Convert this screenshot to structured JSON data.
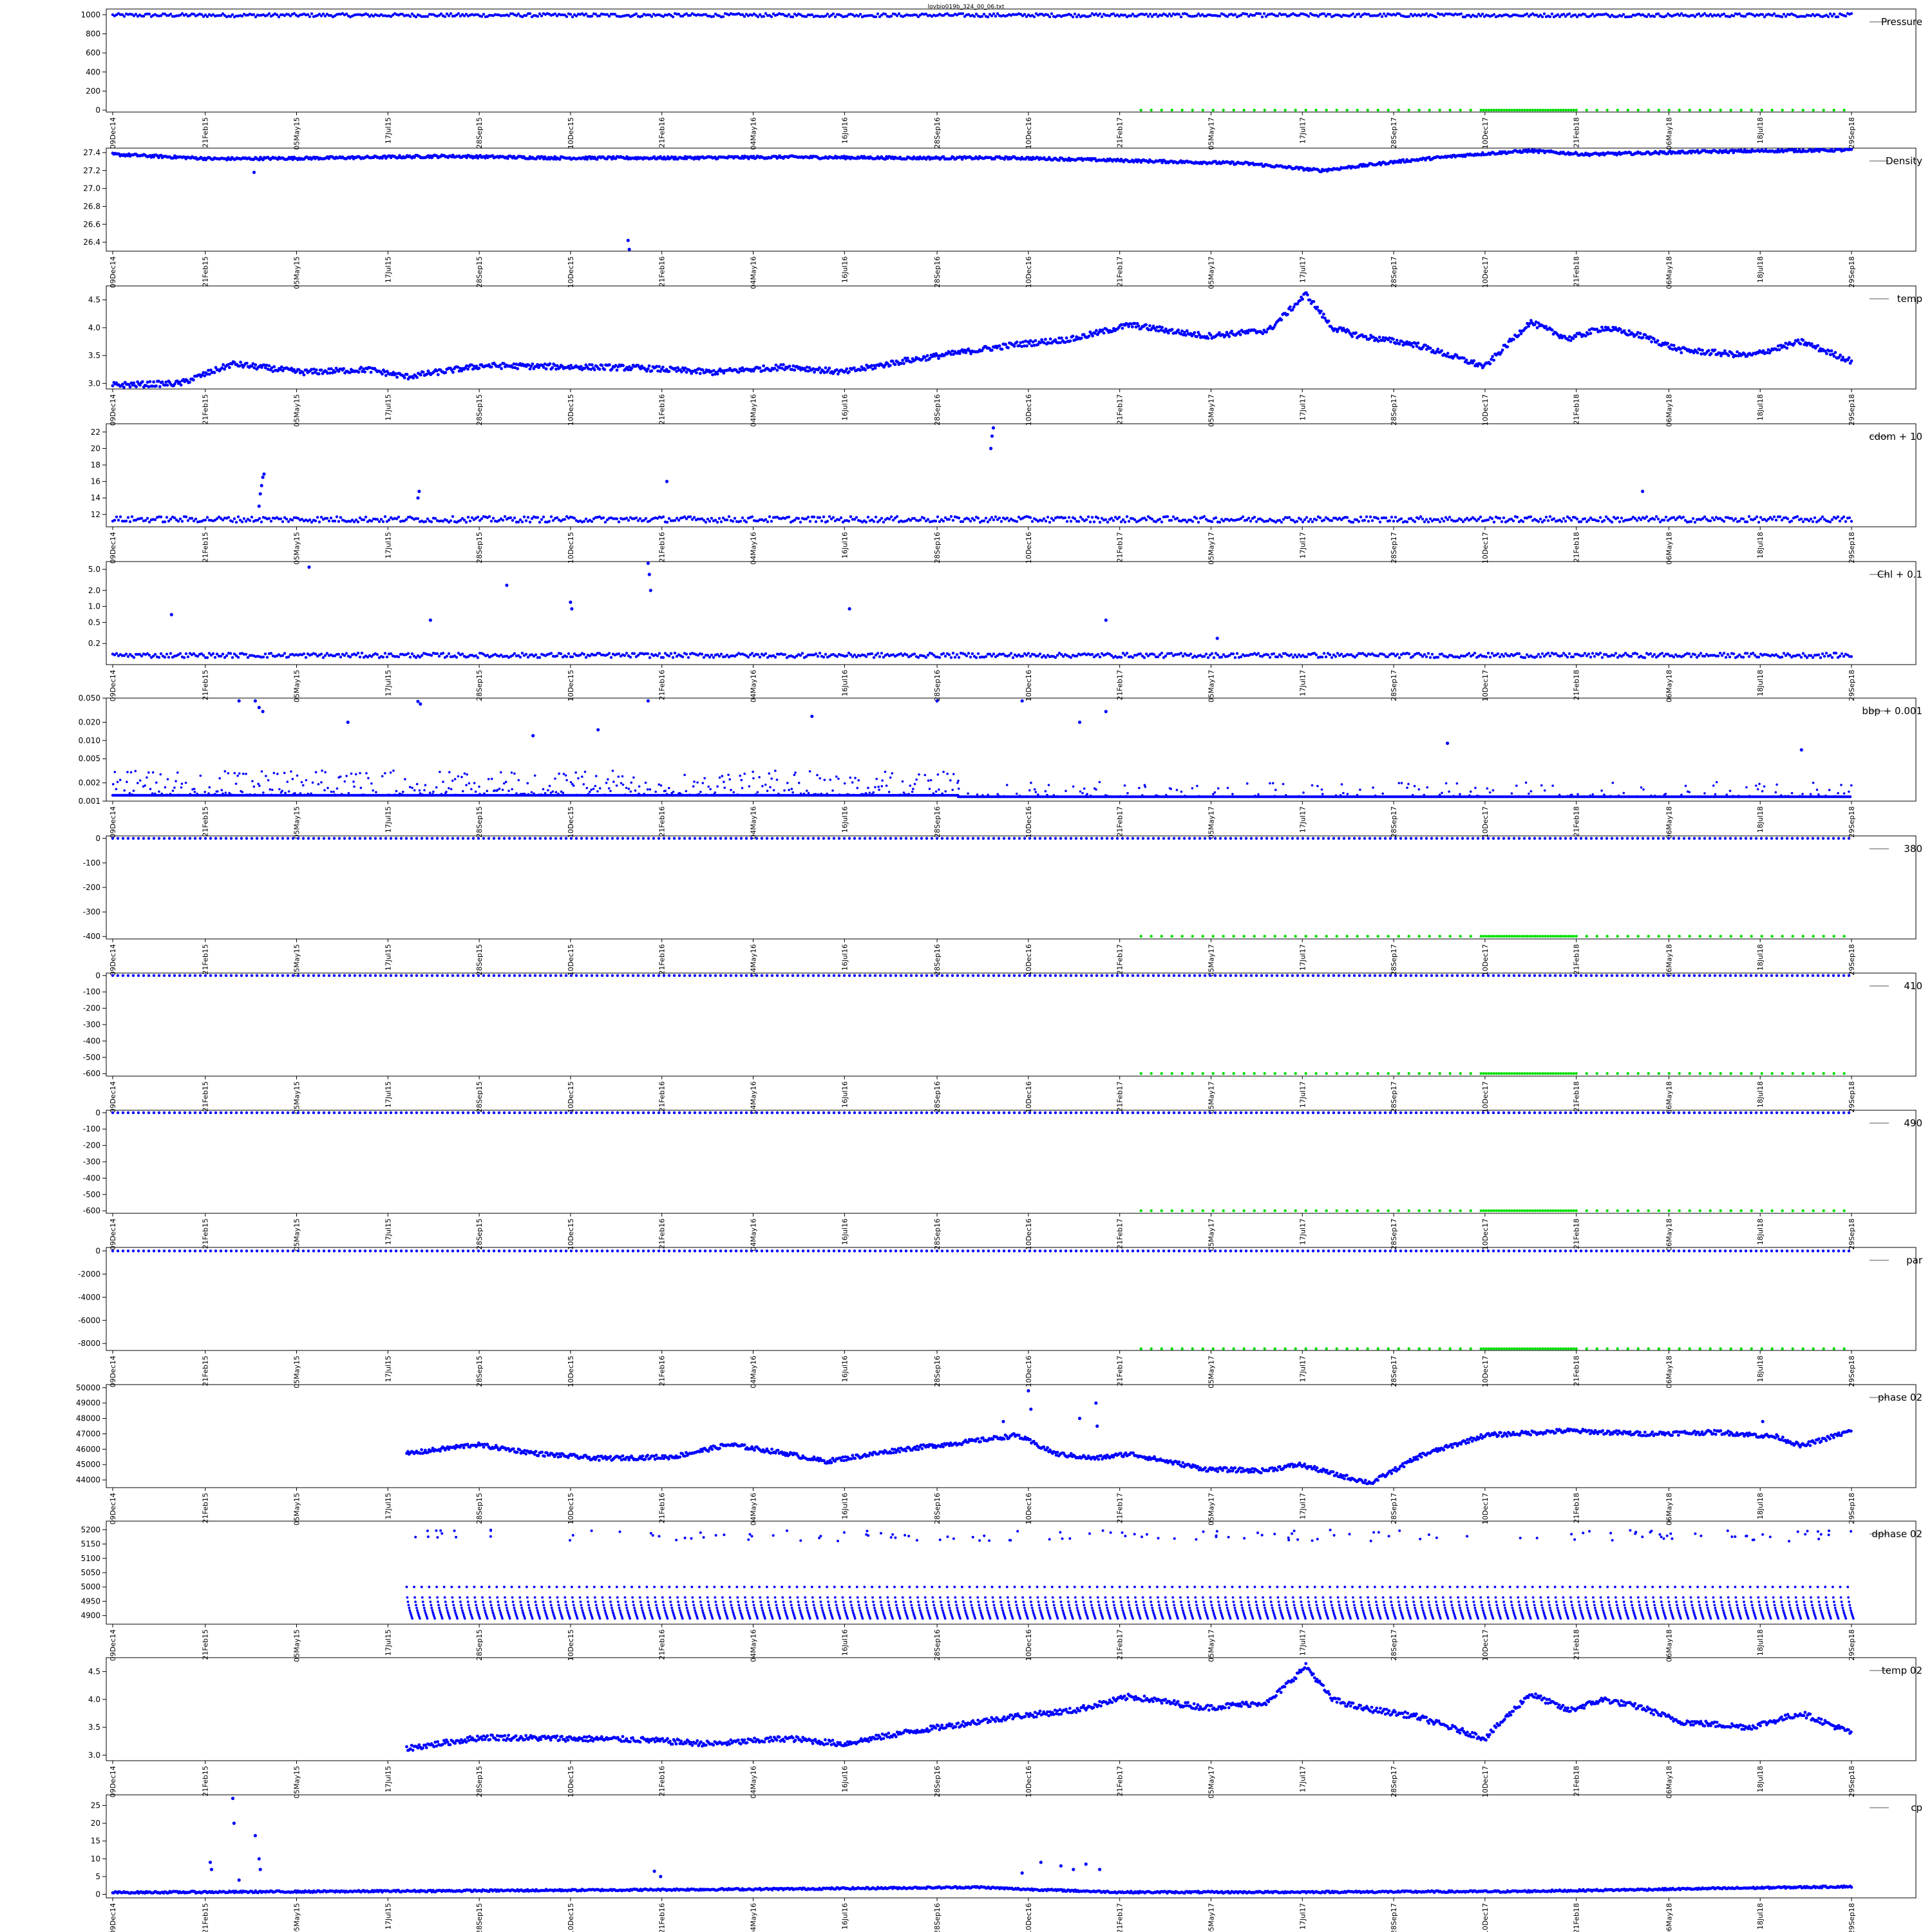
{
  "title": "lovbio019b_324_00_06.txt",
  "colors": {
    "series": "#0000ff",
    "flag": "#00e000",
    "axis": "#000000"
  },
  "x_axis": {
    "type": "date",
    "range": [
      "2014-12-09",
      "2018-09-29"
    ],
    "tick_labels": [
      "09Dec14",
      "21Feb15",
      "05May15",
      "17Jul15",
      "28Sep15",
      "10Dec15",
      "21Feb16",
      "04May16",
      "16Jul16",
      "28Sep16",
      "10Dec16",
      "21Feb17",
      "05May17",
      "17Jul17",
      "28Sep17",
      "10Dec17",
      "21Feb18",
      "06May18",
      "18Jul18",
      "29Sep18"
    ]
  },
  "chart_data": [
    {
      "type": "scatter",
      "legend": "Pressure",
      "legend_position": "top-right",
      "yticks": [
        "0",
        "200",
        "400",
        "600",
        "800",
        "1000"
      ],
      "ylim": [
        -20,
        1060
      ],
      "series": [
        {
          "kind": "band",
          "start": "2014-12-09",
          "end": "2018-09-29",
          "center": 995,
          "halfwidth": 18,
          "noise": 15
        },
        {
          "kind": "flags",
          "start": "2017-03-10",
          "end": "2018-09-29",
          "value": 0,
          "dense_from": "2017-12-01",
          "dense_to": "2018-02-21"
        }
      ]
    },
    {
      "type": "scatter",
      "legend": "Density",
      "legend_position": "top-right",
      "yticks": [
        "26.4",
        "26.6",
        "26.8",
        "27.0",
        "27.2",
        "27.4"
      ],
      "ylim": [
        26.3,
        27.45
      ],
      "series": [
        {
          "kind": "line",
          "x": [
            "2014-12-09",
            "2015-03-01",
            "2015-06-01",
            "2015-09-01",
            "2015-12-01",
            "2016-03-01",
            "2016-06-01",
            "2016-09-01",
            "2016-12-01",
            "2017-03-01",
            "2017-06-01",
            "2017-08-01",
            "2017-10-01",
            "2017-12-01",
            "2018-01-15",
            "2018-03-01",
            "2018-06-01",
            "2018-09-29"
          ],
          "y": [
            27.38,
            27.33,
            27.34,
            27.36,
            27.34,
            27.34,
            27.35,
            27.34,
            27.34,
            27.31,
            27.28,
            27.2,
            27.3,
            27.38,
            27.42,
            27.38,
            27.41,
            27.43
          ],
          "halfwidth": 0.015
        },
        {
          "kind": "points",
          "x": [
            "2015-04-01",
            "2016-01-25",
            "2016-01-26"
          ],
          "y": [
            27.18,
            26.42,
            26.32
          ]
        }
      ]
    },
    {
      "type": "scatter",
      "legend": "temp",
      "legend_position": "top-right",
      "yticks": [
        "3.0",
        "3.5",
        "4.0",
        "4.5"
      ],
      "ylim": [
        2.9,
        4.75
      ],
      "series": [
        {
          "kind": "line",
          "x": [
            "2014-12-09",
            "2015-02-01",
            "2015-03-15",
            "2015-05-10",
            "2015-07-01",
            "2015-08-01",
            "2015-10-01",
            "2015-12-01",
            "2016-02-01",
            "2016-04-01",
            "2016-06-01",
            "2016-07-15",
            "2016-09-01",
            "2016-10-15",
            "2016-12-01",
            "2017-01-15",
            "2017-03-01",
            "2017-05-01",
            "2017-06-20",
            "2017-07-20",
            "2017-08-10",
            "2017-09-01",
            "2017-10-15",
            "2017-12-10",
            "2018-01-15",
            "2018-02-15",
            "2018-03-15",
            "2018-04-15",
            "2018-05-15",
            "2018-07-10",
            "2018-08-20",
            "2018-09-29"
          ],
          "y": [
            2.97,
            3.0,
            3.35,
            3.2,
            3.25,
            3.12,
            3.32,
            3.3,
            3.28,
            3.2,
            3.3,
            3.2,
            3.4,
            3.55,
            3.7,
            3.8,
            4.05,
            3.85,
            3.95,
            4.6,
            4.0,
            3.85,
            3.7,
            3.3,
            4.1,
            3.8,
            4.0,
            3.85,
            3.6,
            3.5,
            3.75,
            3.4
          ],
          "halfwidth": 0.05
        }
      ]
    },
    {
      "type": "scatter",
      "legend": "cdom + 10",
      "legend_position": "top-right",
      "yticks": [
        "12",
        "14",
        "16",
        "18",
        "20",
        "22"
      ],
      "ylim": [
        10.5,
        23
      ],
      "series": [
        {
          "kind": "band",
          "start": "2014-12-09",
          "end": "2018-09-29",
          "center": 11.4,
          "halfwidth": 0.35,
          "noise": 0.25
        },
        {
          "kind": "points",
          "x": [
            "2015-04-05",
            "2015-04-06",
            "2015-04-07",
            "2015-04-08",
            "2015-04-09",
            "2015-08-10",
            "2015-08-11",
            "2016-02-25",
            "2016-11-10",
            "2016-11-11",
            "2016-11-12",
            "2018-04-15"
          ],
          "y": [
            13.0,
            14.5,
            15.5,
            16.5,
            16.9,
            14.0,
            14.8,
            16.0,
            20.0,
            21.5,
            22.5,
            14.8
          ]
        }
      ]
    },
    {
      "type": "scatter",
      "legend": "Chl + 0.1",
      "legend_position": "top-right",
      "scale": "log",
      "yticks": [
        "0.2",
        "0.5",
        "1.0",
        "2.0",
        "5.0"
      ],
      "ylim": [
        0.08,
        7
      ],
      "series": [
        {
          "kind": "band",
          "start": "2014-12-09",
          "end": "2018-09-29",
          "center": 0.12,
          "halfwidth": 0.012,
          "noise": 0.01
        },
        {
          "kind": "points",
          "x": [
            "2015-01-25",
            "2015-05-15",
            "2015-10-20",
            "2015-12-10",
            "2015-12-11",
            "2016-02-10",
            "2016-02-11",
            "2016-02-12",
            "2016-07-20",
            "2017-02-10",
            "2017-05-10",
            "2015-08-20"
          ],
          "y": [
            0.7,
            5.5,
            2.5,
            1.2,
            0.9,
            6.5,
            4.0,
            2.0,
            0.9,
            0.55,
            0.25,
            0.55
          ]
        }
      ]
    },
    {
      "type": "scatter",
      "legend": "bbp + 0.001",
      "legend_position": "top-right",
      "scale": "log",
      "yticks": [
        "0.001",
        "0.002",
        "0.005",
        "0.010",
        "0.020",
        "0.050"
      ],
      "ylim": [
        0.001,
        0.05
      ],
      "series": [
        {
          "kind": "cloud",
          "start": "2014-12-09",
          "end": "2016-10-15",
          "base": 0.00125,
          "spread": 0.0009,
          "density": 1.0
        },
        {
          "kind": "cloud",
          "start": "2016-10-15",
          "end": "2018-09-29",
          "base": 0.00118,
          "spread": 0.0004,
          "density": 0.45
        },
        {
          "kind": "points",
          "x": [
            "2015-04-02",
            "2015-04-05",
            "2015-04-08",
            "2015-08-10",
            "2015-08-12",
            "2016-02-10",
            "2016-09-28",
            "2016-12-05",
            "2017-02-10",
            "2015-03-20",
            "2017-01-20",
            "2018-08-20",
            "2017-11-10",
            "2016-06-20",
            "2015-06-15",
            "2016-01-01",
            "2015-11-10"
          ],
          "y": [
            0.045,
            0.035,
            0.03,
            0.044,
            0.04,
            0.045,
            0.045,
            0.045,
            0.03,
            0.045,
            0.02,
            0.007,
            0.009,
            0.025,
            0.02,
            0.015,
            0.012
          ]
        }
      ]
    },
    {
      "type": "scatter",
      "legend": "380",
      "legend_position": "top-right",
      "yticks": [
        "-400",
        "-300",
        "-200",
        "-100",
        "0"
      ],
      "ylim": [
        -410,
        10
      ],
      "series": [
        {
          "kind": "line_dots",
          "start": "2014-12-09",
          "end": "2018-09-29",
          "value": 0
        },
        {
          "kind": "flags",
          "start": "2017-03-10",
          "end": "2018-09-29",
          "value": -399,
          "dense_from": "2017-12-01",
          "dense_to": "2018-02-21"
        }
      ]
    },
    {
      "type": "scatter",
      "legend": "410",
      "legend_position": "top-right",
      "yticks": [
        "-600",
        "-500",
        "-400",
        "-300",
        "-200",
        "-100",
        "0"
      ],
      "ylim": [
        -615,
        15
      ],
      "series": [
        {
          "kind": "line_dots",
          "start": "2014-12-09",
          "end": "2018-09-29",
          "value": 0
        },
        {
          "kind": "flags",
          "start": "2017-03-10",
          "end": "2018-09-29",
          "value": -599,
          "dense_from": "2017-12-01",
          "dense_to": "2018-02-21"
        }
      ]
    },
    {
      "type": "scatter",
      "legend": "490",
      "legend_position": "top-right",
      "yticks": [
        "-600",
        "-500",
        "-400",
        "-300",
        "-200",
        "-100",
        "0"
      ],
      "ylim": [
        -615,
        15
      ],
      "series": [
        {
          "kind": "line_dots",
          "start": "2014-12-09",
          "end": "2018-09-29",
          "value": 0
        },
        {
          "kind": "flags",
          "start": "2017-03-10",
          "end": "2018-09-29",
          "value": -599,
          "dense_from": "2017-12-01",
          "dense_to": "2018-02-21"
        }
      ]
    },
    {
      "type": "scatter",
      "legend": "par",
      "legend_position": "top-right",
      "yticks": [
        "-8000",
        "-6000",
        "-4000",
        "-2000",
        "0"
      ],
      "ylim": [
        -8600,
        300
      ],
      "series": [
        {
          "kind": "line_dots",
          "start": "2014-12-09",
          "end": "2018-09-29",
          "value": 0
        },
        {
          "kind": "flags",
          "start": "2017-03-10",
          "end": "2018-09-29",
          "value": -8450,
          "dense_from": "2017-12-01",
          "dense_to": "2018-02-21"
        }
      ]
    },
    {
      "type": "scatter",
      "legend": "phase 02",
      "legend_position": "top-right",
      "yticks": [
        "44000",
        "45000",
        "46000",
        "47000",
        "48000",
        "49000",
        "50000"
      ],
      "ylim": [
        43500,
        50200
      ],
      "series": [
        {
          "kind": "line",
          "x": [
            "2015-08-01",
            "2015-09-25",
            "2015-11-15",
            "2016-01-01",
            "2016-03-01",
            "2016-04-15",
            "2016-06-01",
            "2016-07-01",
            "2016-09-01",
            "2016-10-15",
            "2016-12-01",
            "2017-01-01",
            "2017-02-01",
            "2017-03-01",
            "2017-05-01",
            "2017-06-15",
            "2017-07-15",
            "2017-08-15",
            "2017-09-10",
            "2017-10-20",
            "2017-12-10",
            "2018-02-15",
            "2018-03-15",
            "2018-04-15",
            "2018-06-15",
            "2018-08-01",
            "2018-08-20",
            "2018-09-29"
          ],
          "y": [
            45700,
            46300,
            45700,
            45400,
            45500,
            46300,
            45700,
            45200,
            46000,
            46400,
            46900,
            45700,
            45400,
            45700,
            44700,
            44600,
            45000,
            44300,
            43800,
            45600,
            46900,
            47200,
            47100,
            47000,
            47100,
            46800,
            46200,
            47200
          ],
          "halfwidth": 140
        },
        {
          "kind": "points",
          "x": [
            "2016-12-10",
            "2016-12-12",
            "2017-01-20",
            "2017-02-02",
            "2017-02-03",
            "2016-11-20",
            "2018-07-20"
          ],
          "y": [
            49800,
            48600,
            48000,
            49000,
            47500,
            47800,
            47800
          ]
        }
      ]
    },
    {
      "type": "scatter",
      "legend": "dphase 02",
      "legend_position": "top-right",
      "yticks": [
        "4900",
        "4950",
        "5000",
        "5050",
        "5100",
        "5150",
        "5200"
      ],
      "ylim": [
        4870,
        5230
      ],
      "series": [
        {
          "kind": "sawtooth",
          "start": "2015-08-01",
          "end": "2018-09-29",
          "low": 4890,
          "high": 5000,
          "period_days": 6
        },
        {
          "kind": "outlier_band",
          "start": "2015-08-01",
          "end": "2018-09-29",
          "center": 5180,
          "halfwidth": 20,
          "count": 140
        }
      ]
    },
    {
      "type": "scatter",
      "legend": "temp 02",
      "legend_position": "top-right",
      "yticks": [
        "3.0",
        "3.5",
        "4.0",
        "4.5"
      ],
      "ylim": [
        2.9,
        4.75
      ],
      "series": [
        {
          "kind": "line",
          "x": [
            "2015-08-01",
            "2015-10-01",
            "2015-12-01",
            "2016-02-01",
            "2016-04-01",
            "2016-06-01",
            "2016-07-15",
            "2016-09-01",
            "2016-10-15",
            "2016-12-01",
            "2017-01-15",
            "2017-03-01",
            "2017-05-01",
            "2017-06-20",
            "2017-07-20",
            "2017-08-10",
            "2017-09-01",
            "2017-10-15",
            "2017-12-10",
            "2018-01-15",
            "2018-02-15",
            "2018-03-15",
            "2018-04-15",
            "2018-05-15",
            "2018-07-10",
            "2018-08-20",
            "2018-09-29"
          ],
          "y": [
            3.12,
            3.32,
            3.3,
            3.28,
            3.2,
            3.3,
            3.2,
            3.4,
            3.55,
            3.7,
            3.8,
            4.05,
            3.85,
            3.95,
            4.6,
            4.0,
            3.85,
            3.7,
            3.3,
            4.1,
            3.8,
            4.0,
            3.85,
            3.6,
            3.5,
            3.75,
            3.4
          ],
          "halfwidth": 0.05
        }
      ]
    },
    {
      "type": "scatter",
      "legend": "cp",
      "legend_position": "top-right",
      "yticks": [
        "0",
        "5",
        "10",
        "15",
        "20",
        "25"
      ],
      "ylim": [
        -1,
        28
      ],
      "series": [
        {
          "kind": "line",
          "x": [
            "2014-12-09",
            "2015-06-01",
            "2016-01-01",
            "2016-06-01",
            "2016-11-01",
            "2016-12-01",
            "2017-02-21",
            "2017-06-01",
            "2018-01-01",
            "2018-09-29"
          ],
          "y": [
            0.5,
            0.8,
            1.2,
            1.5,
            2.0,
            1.5,
            0.6,
            0.6,
            0.8,
            2.2
          ],
          "halfwidth": 0.25
        },
        {
          "kind": "points",
          "x": [
            "2015-02-25",
            "2015-02-26",
            "2015-03-15",
            "2015-03-16",
            "2015-04-02",
            "2015-04-05",
            "2015-04-06",
            "2016-02-15",
            "2016-02-20",
            "2016-12-05",
            "2016-12-20",
            "2017-01-05",
            "2017-01-15",
            "2017-01-25",
            "2017-02-05",
            "2015-03-20"
          ],
          "y": [
            9,
            7,
            27,
            20,
            16.5,
            10,
            7,
            6.5,
            5,
            6,
            9,
            8,
            7,
            8.5,
            7,
            4
          ]
        }
      ]
    }
  ]
}
